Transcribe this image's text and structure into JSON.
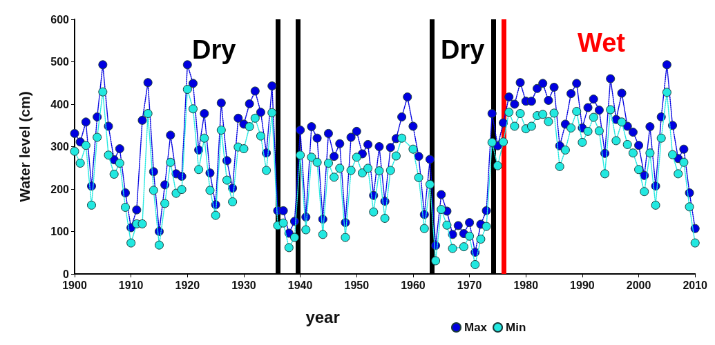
{
  "chart_data": {
    "type": "line",
    "xlabel": "year",
    "ylabel": "Water level (cm)",
    "x": [
      1900,
      1901,
      1902,
      1903,
      1904,
      1905,
      1906,
      1907,
      1908,
      1909,
      1910,
      1911,
      1912,
      1913,
      1914,
      1915,
      1916,
      1917,
      1918,
      1919,
      1920,
      1921,
      1922,
      1923,
      1924,
      1925,
      1926,
      1927,
      1928,
      1929,
      1930,
      1931,
      1932,
      1933,
      1934,
      1935,
      1936,
      1937,
      1938,
      1939,
      1940,
      1941,
      1942,
      1943,
      1944,
      1945,
      1946,
      1947,
      1948,
      1949,
      1950,
      1951,
      1952,
      1953,
      1954,
      1955,
      1956,
      1957,
      1958,
      1959,
      1960,
      1961,
      1962,
      1963,
      1964,
      1965,
      1966,
      1967,
      1968,
      1969,
      1970,
      1971,
      1972,
      1973,
      1974,
      1975,
      1976,
      1977,
      1978,
      1979,
      1980,
      1981,
      1982,
      1983,
      1984,
      1985,
      1986,
      1987,
      1988,
      1989,
      1990,
      1991,
      1992,
      1993,
      1994,
      1995,
      1996,
      1997,
      1998,
      1999,
      2000,
      2001,
      2002,
      2003,
      2004,
      2005,
      2006,
      2007,
      2008,
      2009,
      2010
    ],
    "series": [
      {
        "name": "Max",
        "color": "#0000e0",
        "values": [
          331,
          311,
          358,
          207,
          370,
          493,
          348,
          269,
          295,
          191,
          109,
          151,
          362,
          451,
          241,
          100,
          210,
          327,
          236,
          230,
          493,
          449,
          292,
          378,
          238,
          163,
          403,
          267,
          202,
          367,
          353,
          401,
          431,
          381,
          285,
          443,
          149,
          149,
          96,
          124,
          339,
          134,
          347,
          320,
          129,
          331,
          277,
          307,
          121,
          322,
          336,
          283,
          305,
          185,
          300,
          171,
          298,
          319,
          370,
          417,
          348,
          277,
          140,
          270,
          67,
          187,
          148,
          93,
          114,
          95,
          121,
          51,
          117,
          149,
          378,
          302,
          356,
          417,
          400,
          451,
          407,
          407,
          437,
          449,
          409,
          440,
          302,
          353,
          425,
          449,
          344,
          392,
          412,
          386,
          284,
          460,
          364,
          426,
          348,
          334,
          303,
          232,
          347,
          207,
          370,
          493,
          350,
          272,
          294,
          191,
          107
        ]
      },
      {
        "name": "Min",
        "color": "#22e8e0",
        "values": [
          289,
          261,
          303,
          162,
          322,
          429,
          280,
          235,
          261,
          157,
          73,
          118,
          118,
          378,
          197,
          68,
          166,
          263,
          190,
          199,
          435,
          389,
          246,
          320,
          197,
          138,
          339,
          221,
          170,
          299,
          295,
          347,
          367,
          325,
          244,
          380,
          114,
          120,
          62,
          86,
          280,
          104,
          275,
          263,
          93,
          261,
          228,
          249,
          86,
          244,
          275,
          238,
          249,
          146,
          243,
          131,
          244,
          278,
          320,
          null,
          294,
          227,
          107,
          211,
          31,
          152,
          115,
          60,
          null,
          64,
          89,
          22,
          82,
          112,
          310,
          255,
          311,
          381,
          348,
          378,
          342,
          348,
          373,
          376,
          359,
          379,
          253,
          292,
          344,
          383,
          310,
          336,
          369,
          337,
          236,
          387,
          314,
          358,
          305,
          285,
          246,
          194,
          285,
          162,
          320,
          428,
          281,
          236,
          263,
          158,
          73
        ]
      }
    ],
    "xlim": [
      1900,
      2010
    ],
    "xticks": [
      1900,
      1910,
      1920,
      1930,
      1940,
      1950,
      1960,
      1970,
      1980,
      1990,
      2000,
      2010
    ],
    "ylim": [
      0,
      600
    ],
    "yticks": [
      0,
      100,
      200,
      300,
      400,
      500,
      600
    ],
    "grid": false,
    "legend": "bottom",
    "marker": "circle",
    "line_style": "dotted",
    "ref_lines": [
      {
        "axis": "x",
        "value": 1936,
        "color": "#000000"
      },
      {
        "axis": "x",
        "value": 1939.6,
        "color": "#000000"
      },
      {
        "axis": "x",
        "value": 1963.3,
        "color": "#000000"
      },
      {
        "axis": "x",
        "value": 1974.2,
        "color": "#000000"
      },
      {
        "axis": "x",
        "value": 1976.1,
        "color": "#ff0000"
      }
    ],
    "annotations": [
      "Dry",
      "Dry",
      "Wet"
    ]
  }
}
